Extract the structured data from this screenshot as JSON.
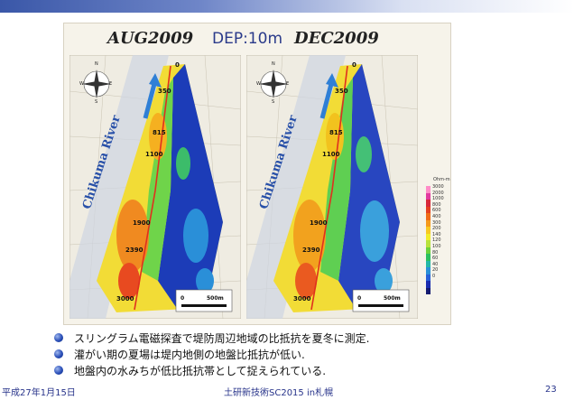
{
  "figure": {
    "title_left": "AUG2009",
    "title_mid": "DEP:10m",
    "title_right": "DEC2009",
    "river_label": "Chikuma River",
    "compass": {
      "n": "N",
      "e": "E",
      "s": "S",
      "w": "W"
    },
    "distance_marks": [
      "0",
      "350",
      "815",
      "1100",
      "1900",
      "2390",
      "3000"
    ],
    "scale_label_zero": "0",
    "scale_label": "500m",
    "legend": {
      "unit": "Ohm-m",
      "values": [
        "3000",
        "2000",
        "1000",
        "800",
        "600",
        "400",
        "300",
        "200",
        "140",
        "120",
        "100",
        "80",
        "60",
        "40",
        "20",
        "0"
      ],
      "colors": [
        "#ff8cc8",
        "#e23aa0",
        "#d8283a",
        "#e44020",
        "#f06c18",
        "#f59a1c",
        "#f8c822",
        "#f2ec2a",
        "#b8e23c",
        "#6cd23c",
        "#2cc060",
        "#24b8a8",
        "#2a90d8",
        "#2860d8",
        "#1a2cb0",
        "#141a70"
      ]
    }
  },
  "bullets": [
    "スリングラム電磁探査で堤防周辺地域の比抵抗を夏冬に測定.",
    "灌がい期の夏場は堤内地側の地盤比抵抗が低い.",
    " 地盤内の水みちが低比抵抗帯として捉えられている."
  ],
  "footer": {
    "date": "平成27年1月15日",
    "conference": "土研新技術SC2015 in札幌",
    "page": "23"
  }
}
